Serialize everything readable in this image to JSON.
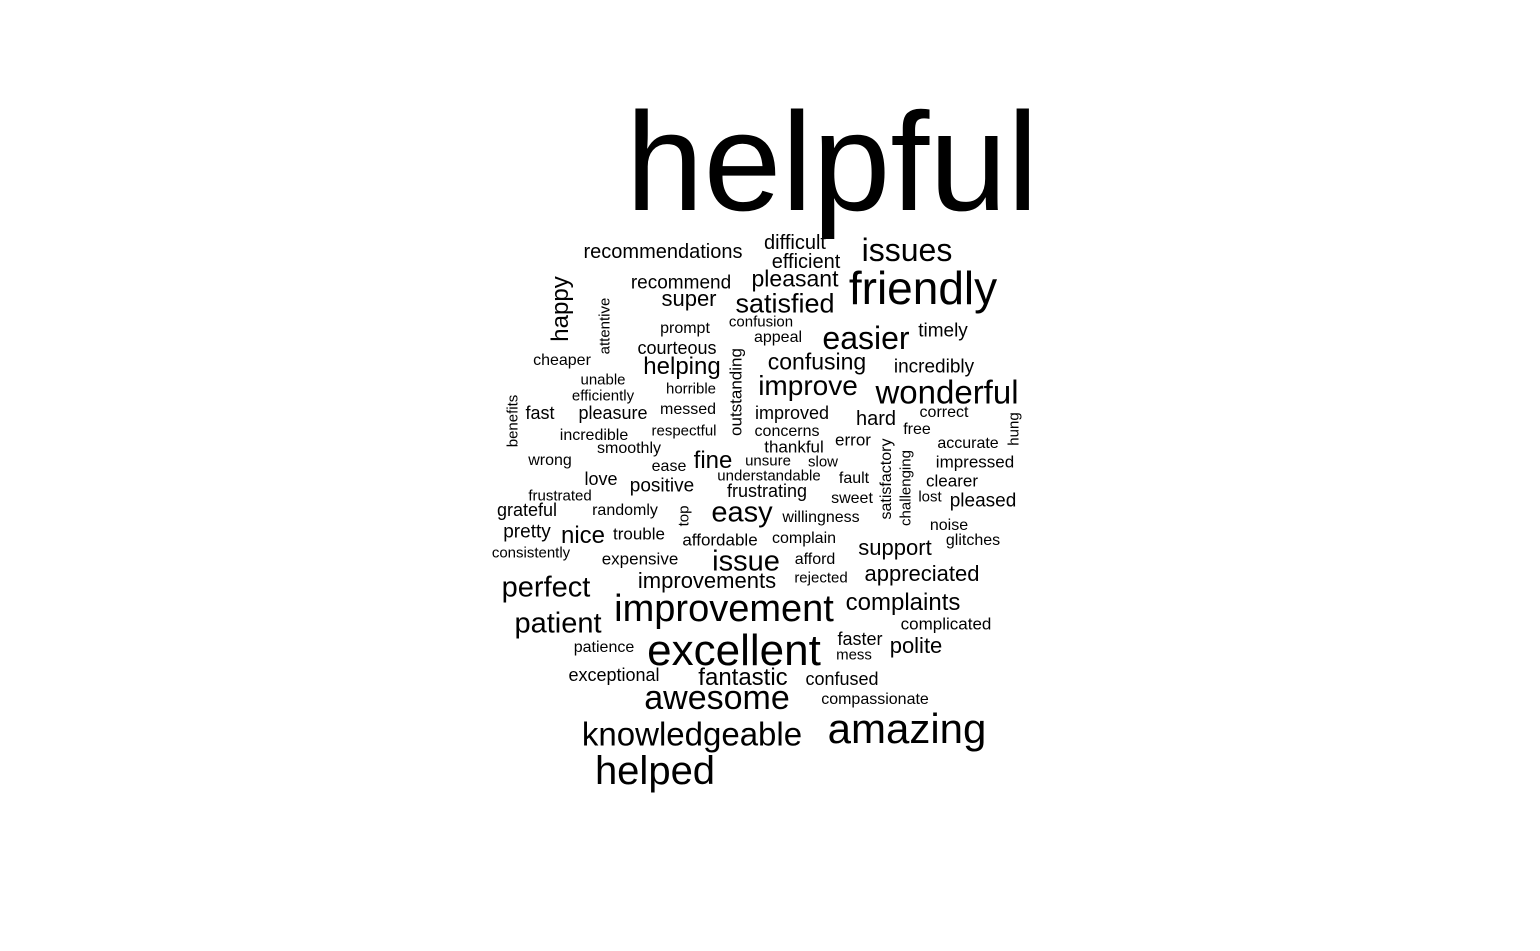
{
  "words": [
    {
      "text": "helpful",
      "rot": 0
    },
    {
      "text": "friendly",
      "rot": 0
    },
    {
      "text": "excellent",
      "rot": 0
    },
    {
      "text": "improvement",
      "rot": 0
    },
    {
      "text": "amazing",
      "rot": 0
    },
    {
      "text": "helped",
      "rot": 0
    },
    {
      "text": "awesome",
      "rot": 0
    },
    {
      "text": "knowledgeable",
      "rot": 0
    },
    {
      "text": "wonderful",
      "rot": 0
    },
    {
      "text": "easier",
      "rot": 0
    },
    {
      "text": "issues",
      "rot": 0
    },
    {
      "text": "perfect",
      "rot": 0
    },
    {
      "text": "patient",
      "rot": 0
    },
    {
      "text": "issue",
      "rot": 0
    },
    {
      "text": "easy",
      "rot": 0
    },
    {
      "text": "improve",
      "rot": 0
    },
    {
      "text": "satisfied",
      "rot": 0
    },
    {
      "text": "fantastic",
      "rot": 0
    },
    {
      "text": "complaints",
      "rot": 0
    },
    {
      "text": "happy",
      "rot": 90
    },
    {
      "text": "helping",
      "rot": 0
    },
    {
      "text": "confusing",
      "rot": 0
    },
    {
      "text": "pleasant",
      "rot": 0
    },
    {
      "text": "nice",
      "rot": 0
    },
    {
      "text": "fine",
      "rot": 0
    },
    {
      "text": "super",
      "rot": 0
    },
    {
      "text": "appreciated",
      "rot": 0
    },
    {
      "text": "improvements",
      "rot": 0
    },
    {
      "text": "support",
      "rot": 0
    },
    {
      "text": "polite",
      "rot": 0
    },
    {
      "text": "recommendations",
      "rot": 0
    },
    {
      "text": "difficult",
      "rot": 0
    },
    {
      "text": "efficient",
      "rot": 0
    },
    {
      "text": "hard",
      "rot": 0
    },
    {
      "text": "recommend",
      "rot": 0
    },
    {
      "text": "timely",
      "rot": 0
    },
    {
      "text": "incredibly",
      "rot": 0
    },
    {
      "text": "courteous",
      "rot": 0
    },
    {
      "text": "positive",
      "rot": 0
    },
    {
      "text": "pretty",
      "rot": 0
    },
    {
      "text": "grateful",
      "rot": 0
    },
    {
      "text": "fast",
      "rot": 0
    },
    {
      "text": "pleasure",
      "rot": 0
    },
    {
      "text": "outstanding",
      "rot": 90
    },
    {
      "text": "improved",
      "rot": 0
    },
    {
      "text": "love",
      "rot": 0
    },
    {
      "text": "frustrating",
      "rot": 0
    },
    {
      "text": "pleased",
      "rot": 0
    },
    {
      "text": "faster",
      "rot": 0
    },
    {
      "text": "complicated",
      "rot": 0
    },
    {
      "text": "exceptional",
      "rot": 0
    },
    {
      "text": "confused",
      "rot": 0
    },
    {
      "text": "compassionate",
      "rot": 0
    },
    {
      "text": "prompt",
      "rot": 0
    },
    {
      "text": "confusion",
      "rot": 0
    },
    {
      "text": "appeal",
      "rot": 0
    },
    {
      "text": "attentive",
      "rot": 90
    },
    {
      "text": "cheaper",
      "rot": 0
    },
    {
      "text": "unable",
      "rot": 0
    },
    {
      "text": "efficiently",
      "rot": 0
    },
    {
      "text": "horrible",
      "rot": 0
    },
    {
      "text": "messed",
      "rot": 0
    },
    {
      "text": "benefits",
      "rot": 90
    },
    {
      "text": "correct",
      "rot": 0
    },
    {
      "text": "hung",
      "rot": 90
    },
    {
      "text": "incredible",
      "rot": 0
    },
    {
      "text": "respectful",
      "rot": 0
    },
    {
      "text": "concerns",
      "rot": 0
    },
    {
      "text": "error",
      "rot": 0
    },
    {
      "text": "free",
      "rot": 0
    },
    {
      "text": "accurate",
      "rot": 0
    },
    {
      "text": "smoothly",
      "rot": 0
    },
    {
      "text": "thankful",
      "rot": 0
    },
    {
      "text": "satisfactory",
      "rot": 90
    },
    {
      "text": "wrong",
      "rot": 0
    },
    {
      "text": "ease",
      "rot": 0
    },
    {
      "text": "unsure",
      "rot": 0
    },
    {
      "text": "slow",
      "rot": 0
    },
    {
      "text": "impressed",
      "rot": 0
    },
    {
      "text": "understandable",
      "rot": 0
    },
    {
      "text": "fault",
      "rot": 0
    },
    {
      "text": "challenging",
      "rot": 90
    },
    {
      "text": "clearer",
      "rot": 0
    },
    {
      "text": "frustrated",
      "rot": 0
    },
    {
      "text": "sweet",
      "rot": 0
    },
    {
      "text": "lost",
      "rot": 0
    },
    {
      "text": "randomly",
      "rot": 0
    },
    {
      "text": "top",
      "rot": 90
    },
    {
      "text": "willingness",
      "rot": 0
    },
    {
      "text": "noise",
      "rot": 0
    },
    {
      "text": "trouble",
      "rot": 0
    },
    {
      "text": "affordable",
      "rot": 0
    },
    {
      "text": "complain",
      "rot": 0
    },
    {
      "text": "glitches",
      "rot": 0
    },
    {
      "text": "consistently",
      "rot": 0
    },
    {
      "text": "expensive",
      "rot": 0
    },
    {
      "text": "afford",
      "rot": 0
    },
    {
      "text": "rejected",
      "rot": 0
    },
    {
      "text": "patience",
      "rot": 0
    },
    {
      "text": "mess",
      "rot": 0
    }
  ]
}
